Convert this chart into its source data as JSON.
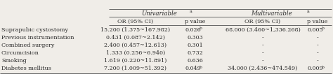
{
  "title_univariable": "Univariable",
  "title_multivariable": "Multivariable",
  "title_superscript": "a",
  "col_headers": [
    "OR (95% CI)",
    "p value",
    "OR (95% CI)",
    "p value"
  ],
  "rows": [
    {
      "label": "Suprapubic cystostomy",
      "uni_or": "15.200 (1.375~167.982)",
      "uni_p": "0.026",
      "uni_p_super": "b",
      "multi_or": "68.000 (3.460~1,336.268)",
      "multi_p": "0.005",
      "multi_p_super": "b"
    },
    {
      "label": "Previous instrumentation",
      "uni_or": "0.431 (0.087~2.142)",
      "uni_p": "0.303",
      "uni_p_super": "",
      "multi_or": "-",
      "multi_p": "-",
      "multi_p_super": ""
    },
    {
      "label": "Combined surgery",
      "uni_or": "2.400 (0.457~12.613)",
      "uni_p": "0.301",
      "uni_p_super": "",
      "multi_or": "-",
      "multi_p": "-",
      "multi_p_super": ""
    },
    {
      "label": "Circumcision",
      "uni_or": "1.333 (0.256~6.940)",
      "uni_p": "0.732",
      "uni_p_super": "",
      "multi_or": "-",
      "multi_p": "-",
      "multi_p_super": ""
    },
    {
      "label": "Smoking",
      "uni_or": "1.619 (0.220~11.891)",
      "uni_p": "0.636",
      "uni_p_super": "",
      "multi_or": "-",
      "multi_p": "-",
      "multi_p_super": ""
    },
    {
      "label": "Diabetes mellitus",
      "uni_or": "7.200 (1.009~51.392)",
      "uni_p": "0.049",
      "uni_p_super": "b",
      "multi_or": "34.000 (2.436~474.549)",
      "multi_p": "0.009",
      "multi_p_super": "b"
    }
  ],
  "bg_color": "#f0ede8",
  "text_color": "#2a2a2a",
  "font_size": 5.8,
  "header_font_size": 6.2,
  "line_color": "#666666"
}
